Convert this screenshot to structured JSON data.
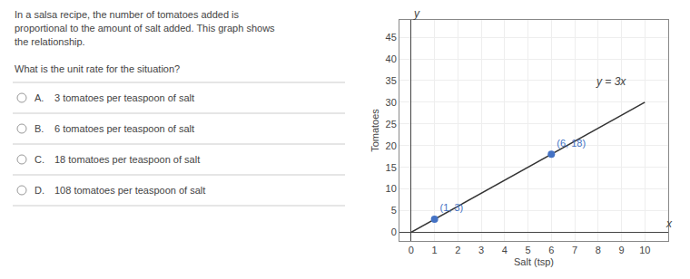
{
  "chart_data": {
    "type": "line",
    "question": [
      "In a salsa recipe, the number of tomatoes added is",
      "proportional to the amount of salt added. This graph shows",
      "the relationship."
    ],
    "prompt": "What is the unit rate for the situation?",
    "options": [
      {
        "label": "A.",
        "text": "3 tomatoes per teaspoon of salt"
      },
      {
        "label": "B.",
        "text": "6 tomatoes per teaspoon of salt"
      },
      {
        "label": "C.",
        "text": "18 tomatoes per teaspoon of salt"
      },
      {
        "label": "D.",
        "text": "108 tomatoes per teaspoon of salt"
      }
    ],
    "xlabel": "Salt (tsp)",
    "ylabel": "Tomatoes",
    "xlim": [
      -0.5,
      11.0
    ],
    "ylim": [
      -2,
      49
    ],
    "xticks": [
      0,
      1,
      2,
      3,
      4,
      5,
      6,
      7,
      8,
      9,
      10
    ],
    "yticks": [
      0,
      5,
      10,
      15,
      20,
      25,
      30,
      35,
      40,
      45
    ],
    "grid": true,
    "data_labels": true,
    "series": [
      {
        "type": "line",
        "color": "#333333",
        "x": [
          0,
          10.0
        ],
        "values": [
          0,
          30.0
        ]
      },
      {
        "type": "scatter",
        "color": "#4472c4",
        "x": [
          1,
          6
        ],
        "values": [
          3,
          18
        ],
        "value_labels": [
          "(1, 3)",
          "(6, 18)"
        ]
      }
    ],
    "annotations": [
      {
        "text": "y = 3x",
        "x": 7.8,
        "y": 33.0
      },
      {
        "text": "x",
        "x": 10.8,
        "y": 0
      },
      {
        "text": "y",
        "x": 0,
        "y": 48.5
      }
    ]
  }
}
